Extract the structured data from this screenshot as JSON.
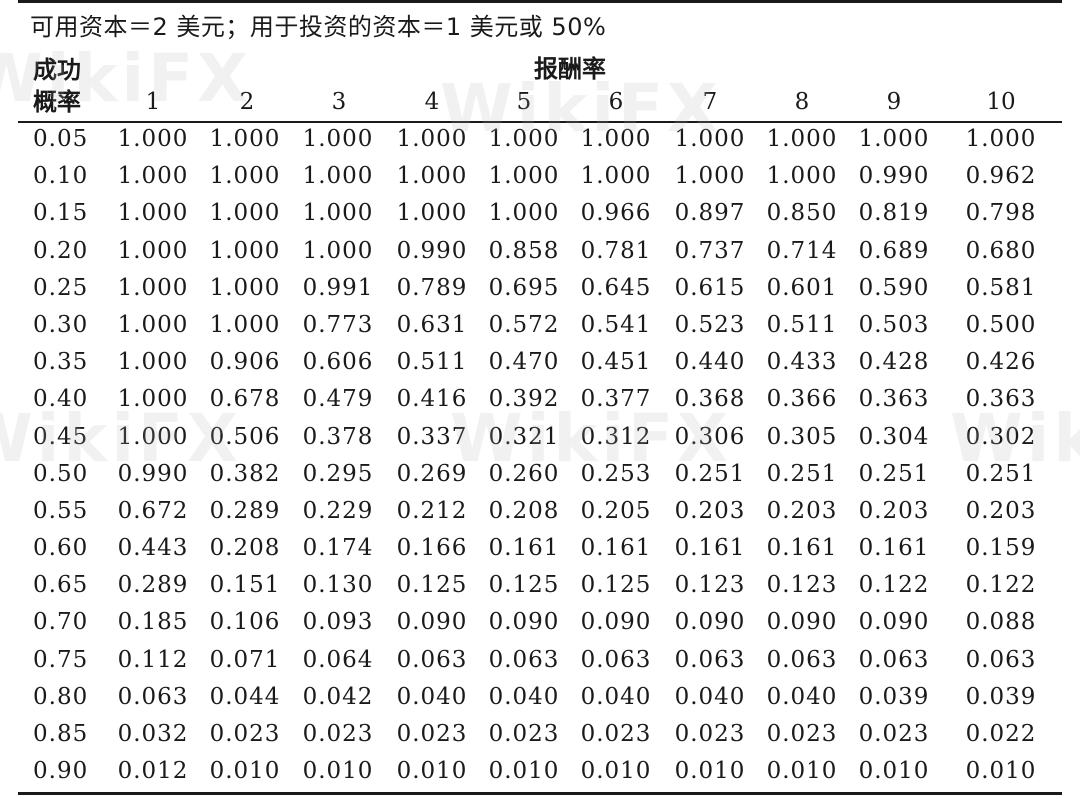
{
  "caption": "可用资本＝2 美元；用于投资的资本＝1 美元或 50%",
  "stub_header": [
    "成功",
    "概率"
  ],
  "spanner_header": "报酬率",
  "column_headers": [
    "1",
    "2",
    "3",
    "4",
    "5",
    "6",
    "7",
    "8",
    "9",
    "10"
  ],
  "rows": [
    {
      "p": "0.05",
      "values": [
        "1.000",
        "1.000",
        "1.000",
        "1.000",
        "1.000",
        "1.000",
        "1.000",
        "1.000",
        "1.000",
        "1.000"
      ]
    },
    {
      "p": "0.10",
      "values": [
        "1.000",
        "1.000",
        "1.000",
        "1.000",
        "1.000",
        "1.000",
        "1.000",
        "1.000",
        "0.990",
        "0.962"
      ]
    },
    {
      "p": "0.15",
      "values": [
        "1.000",
        "1.000",
        "1.000",
        "1.000",
        "1.000",
        "0.966",
        "0.897",
        "0.850",
        "0.819",
        "0.798"
      ]
    },
    {
      "p": "0.20",
      "values": [
        "1.000",
        "1.000",
        "1.000",
        "0.990",
        "0.858",
        "0.781",
        "0.737",
        "0.714",
        "0.689",
        "0.680"
      ]
    },
    {
      "p": "0.25",
      "values": [
        "1.000",
        "1.000",
        "0.991",
        "0.789",
        "0.695",
        "0.645",
        "0.615",
        "0.601",
        "0.590",
        "0.581"
      ]
    },
    {
      "p": "0.30",
      "values": [
        "1.000",
        "1.000",
        "0.773",
        "0.631",
        "0.572",
        "0.541",
        "0.523",
        "0.511",
        "0.503",
        "0.500"
      ]
    },
    {
      "p": "0.35",
      "values": [
        "1.000",
        "0.906",
        "0.606",
        "0.511",
        "0.470",
        "0.451",
        "0.440",
        "0.433",
        "0.428",
        "0.426"
      ]
    },
    {
      "p": "0.40",
      "values": [
        "1.000",
        "0.678",
        "0.479",
        "0.416",
        "0.392",
        "0.377",
        "0.368",
        "0.366",
        "0.363",
        "0.363"
      ]
    },
    {
      "p": "0.45",
      "values": [
        "1.000",
        "0.506",
        "0.378",
        "0.337",
        "0.321",
        "0.312",
        "0.306",
        "0.305",
        "0.304",
        "0.302"
      ]
    },
    {
      "p": "0.50",
      "values": [
        "0.990",
        "0.382",
        "0.295",
        "0.269",
        "0.260",
        "0.253",
        "0.251",
        "0.251",
        "0.251",
        "0.251"
      ]
    },
    {
      "p": "0.55",
      "values": [
        "0.672",
        "0.289",
        "0.229",
        "0.212",
        "0.208",
        "0.205",
        "0.203",
        "0.203",
        "0.203",
        "0.203"
      ]
    },
    {
      "p": "0.60",
      "values": [
        "0.443",
        "0.208",
        "0.174",
        "0.166",
        "0.161",
        "0.161",
        "0.161",
        "0.161",
        "0.161",
        "0.159"
      ]
    },
    {
      "p": "0.65",
      "values": [
        "0.289",
        "0.151",
        "0.130",
        "0.125",
        "0.125",
        "0.125",
        "0.123",
        "0.123",
        "0.122",
        "0.122"
      ]
    },
    {
      "p": "0.70",
      "values": [
        "0.185",
        "0.106",
        "0.093",
        "0.090",
        "0.090",
        "0.090",
        "0.090",
        "0.090",
        "0.090",
        "0.088"
      ]
    },
    {
      "p": "0.75",
      "values": [
        "0.112",
        "0.071",
        "0.064",
        "0.063",
        "0.063",
        "0.063",
        "0.063",
        "0.063",
        "0.063",
        "0.063"
      ]
    },
    {
      "p": "0.80",
      "values": [
        "0.063",
        "0.044",
        "0.042",
        "0.040",
        "0.040",
        "0.040",
        "0.040",
        "0.040",
        "0.039",
        "0.039"
      ]
    },
    {
      "p": "0.85",
      "values": [
        "0.032",
        "0.023",
        "0.023",
        "0.023",
        "0.023",
        "0.023",
        "0.023",
        "0.023",
        "0.023",
        "0.022"
      ]
    },
    {
      "p": "0.90",
      "values": [
        "0.012",
        "0.010",
        "0.010",
        "0.010",
        "0.010",
        "0.010",
        "0.010",
        "0.010",
        "0.010",
        "0.010"
      ]
    }
  ],
  "watermark": "WikiFX"
}
